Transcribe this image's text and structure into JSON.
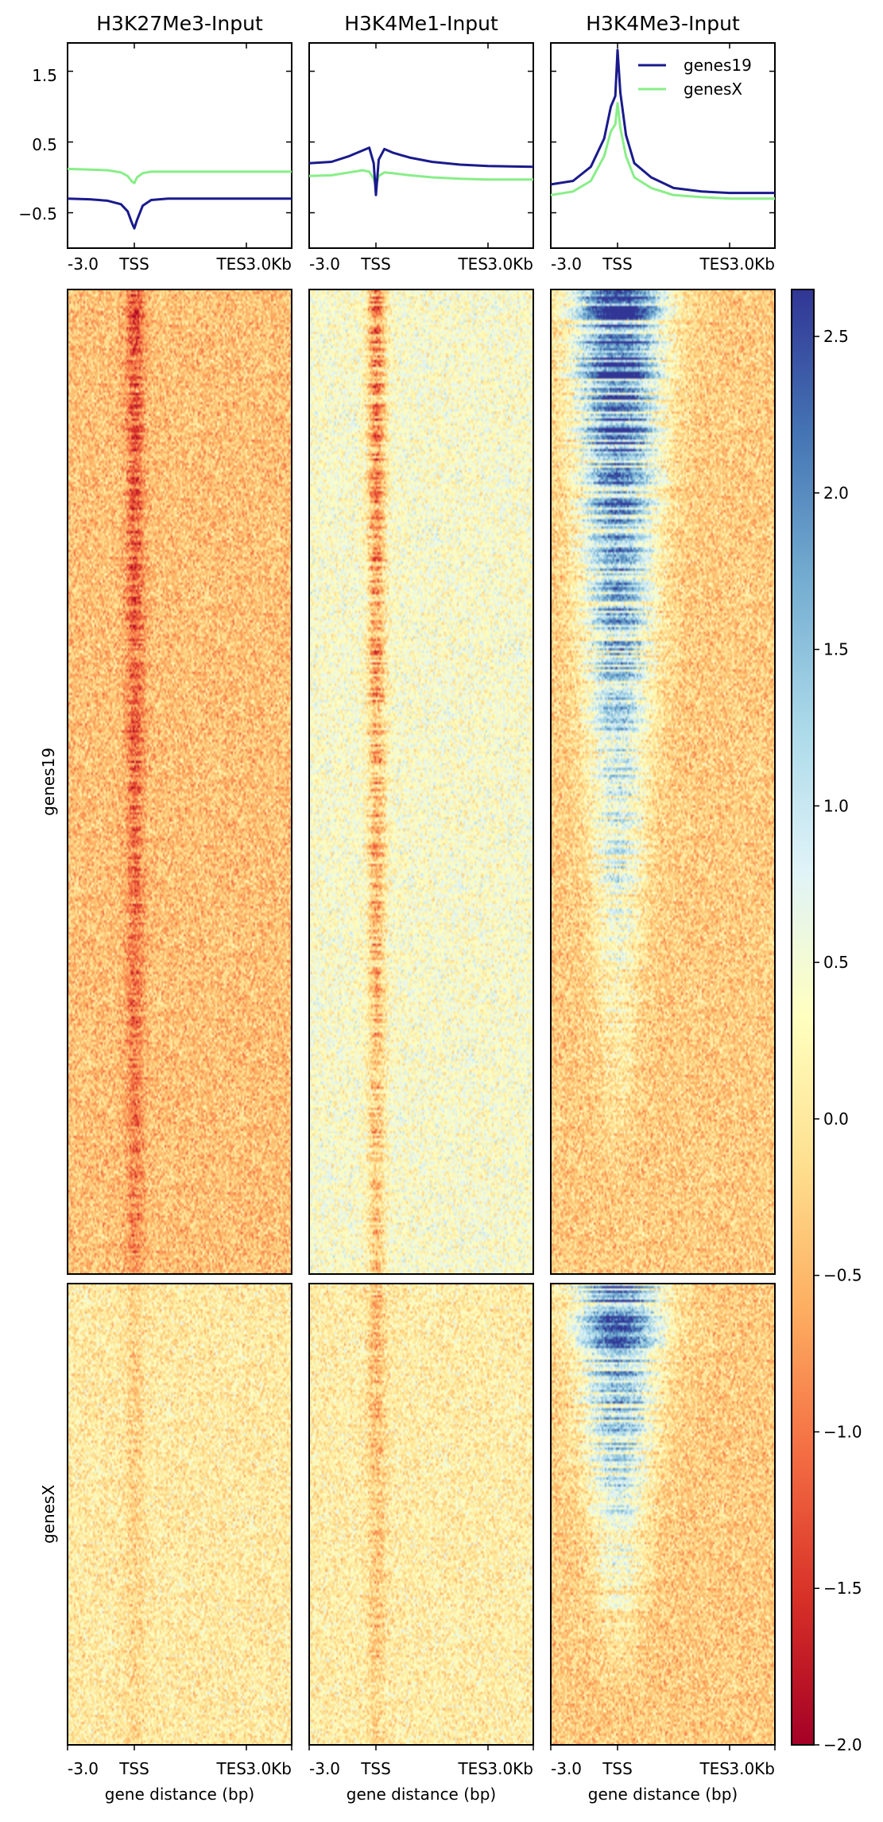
{
  "chart_data": {
    "type": "heatmap",
    "panel_titles": [
      "H3K27Me3-Input",
      "H3K4Me1-Input",
      "H3K4Me3-Input"
    ],
    "groups": [
      "genes19",
      "genesX"
    ],
    "x_ticks": [
      "-3.0",
      "TSS",
      "TES",
      "3.0Kb"
    ],
    "xlabel": "gene distance (bp)",
    "colormap": "RdYlBu",
    "colorbar": {
      "range": [
        -2.0,
        2.65
      ],
      "ticks": [
        "2.5",
        "2.0",
        "1.5",
        "1.0",
        "0.5",
        "0.0",
        "−0.5",
        "−1.0",
        "−1.5",
        "−2.0"
      ],
      "tick_values": [
        2.5,
        2.0,
        1.5,
        1.0,
        0.5,
        0.0,
        -0.5,
        -1.0,
        -1.5,
        -2.0
      ]
    },
    "profile": {
      "ylim": [
        -1.0,
        1.9
      ],
      "y_ticks": [
        "1.5",
        "0.5",
        "−0.5"
      ],
      "y_tick_values": [
        1.5,
        0.5,
        -0.5
      ],
      "legend": {
        "position": "top-right",
        "entries": [
          "genes19",
          "genesX"
        ]
      },
      "series_colors": {
        "genes19": "#1a1a8c",
        "genesX": "#88ee88"
      },
      "x_positions": [
        -3.0,
        -2.0,
        -1.2,
        -0.6,
        -0.3,
        -0.1,
        0.0,
        0.1,
        0.3,
        0.6,
        1.2,
        2.0,
        3.0,
        4.0,
        5.0
      ],
      "panels": [
        {
          "title": "H3K27Me3-Input",
          "series": [
            {
              "name": "genes19",
              "values": [
                -0.3,
                -0.31,
                -0.33,
                -0.38,
                -0.48,
                -0.65,
                -0.72,
                -0.6,
                -0.4,
                -0.32,
                -0.3,
                -0.3,
                -0.3,
                -0.3,
                -0.3
              ]
            },
            {
              "name": "genesX",
              "values": [
                0.12,
                0.11,
                0.1,
                0.07,
                0.02,
                -0.06,
                -0.08,
                0.0,
                0.06,
                0.08,
                0.08,
                0.08,
                0.08,
                0.08,
                0.08
              ]
            }
          ]
        },
        {
          "title": "H3K4Me1-Input",
          "series": [
            {
              "name": "genes19",
              "values": [
                0.2,
                0.22,
                0.3,
                0.38,
                0.42,
                0.2,
                -0.25,
                0.25,
                0.4,
                0.35,
                0.28,
                0.22,
                0.18,
                0.16,
                0.15
              ]
            },
            {
              "name": "genesX",
              "values": [
                0.02,
                0.03,
                0.07,
                0.1,
                0.08,
                -0.02,
                -0.12,
                0.02,
                0.07,
                0.06,
                0.03,
                0.0,
                -0.02,
                -0.03,
                -0.03
              ]
            }
          ]
        },
        {
          "title": "H3K4Me3-Input",
          "series": [
            {
              "name": "genes19",
              "values": [
                -0.1,
                -0.05,
                0.15,
                0.55,
                1.0,
                1.15,
                1.8,
                1.2,
                0.6,
                0.2,
                0.0,
                -0.15,
                -0.2,
                -0.22,
                -0.22
              ]
            },
            {
              "name": "genesX",
              "values": [
                -0.25,
                -0.2,
                -0.05,
                0.3,
                0.65,
                0.75,
                1.05,
                0.7,
                0.3,
                0.0,
                -0.15,
                -0.25,
                -0.28,
                -0.3,
                -0.3
              ]
            }
          ]
        }
      ]
    },
    "heatmap_signal": [
      {
        "title": "H3K27Me3-Input",
        "genes19": {
          "background": -0.4,
          "tss": -1.3
        },
        "genesX": {
          "background": 0.05,
          "tss": -0.3
        }
      },
      {
        "title": "H3K4Me1-Input",
        "genes19": {
          "background": 0.4,
          "tss": -0.9
        },
        "genesX": {
          "background": 0.1,
          "tss": -0.5
        }
      },
      {
        "title": "H3K4Me3-Input",
        "genes19": {
          "background": -0.3,
          "tss": 2.3
        },
        "genesX": {
          "background": -0.3,
          "tss": 1.9
        }
      }
    ]
  }
}
